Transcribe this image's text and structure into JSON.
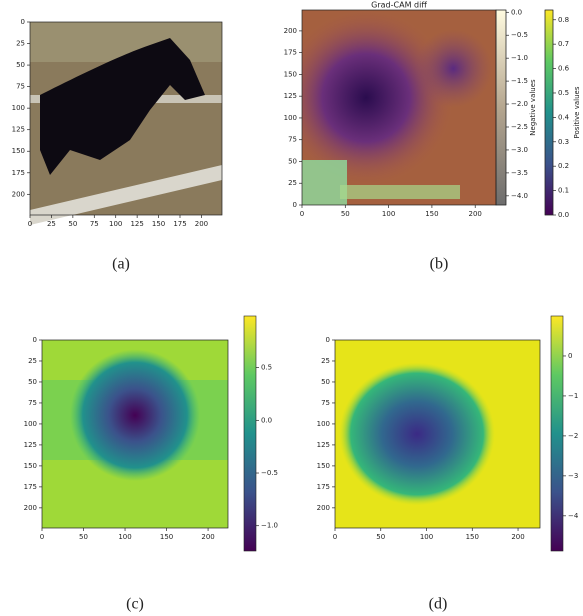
{
  "figure": {
    "panels": [
      {
        "label": "(a)",
        "xlim": [
          0,
          224
        ],
        "ylim": [
          224,
          0
        ],
        "xticks": [
          0,
          25,
          50,
          75,
          100,
          125,
          150,
          175,
          200
        ],
        "yticks": [
          0,
          25,
          50,
          75,
          100,
          125,
          150,
          175,
          200
        ]
      },
      {
        "label": "(b)",
        "title": "Grad-CAM diff",
        "xlim": [
          0,
          224
        ],
        "ylim": [
          0,
          224
        ],
        "xticks": [
          0,
          50,
          100,
          150,
          200
        ],
        "yticks": [
          0,
          25,
          50,
          75,
          100,
          125,
          150,
          175,
          200
        ],
        "colorbars": [
          {
            "label": "Negative values",
            "lim": [
              -4.2,
              0.05
            ],
            "ticks": [
              {
                "value": 0,
                "label": "0.0"
              },
              {
                "value": -0.5,
                "label": "−0.5"
              },
              {
                "value": -1,
                "label": "−1.0"
              },
              {
                "value": -1.5,
                "label": "−1.5"
              },
              {
                "value": -2,
                "label": "−2.0"
              },
              {
                "value": -2.5,
                "label": "−2.5"
              },
              {
                "value": -3,
                "label": "−3.0"
              },
              {
                "value": -3.5,
                "label": "−3.5"
              },
              {
                "value": -4,
                "label": "−4.0"
              }
            ]
          },
          {
            "label": "Positive values",
            "lim": [
              0,
              0.84
            ],
            "ticks": [
              {
                "value": 0,
                "label": "0.0"
              },
              0.1,
              0.2,
              0.3,
              0.4,
              0.5,
              0.6,
              0.7,
              0.8
            ]
          }
        ]
      },
      {
        "label": "(c)",
        "xlim": [
          0,
          224
        ],
        "ylim": [
          224,
          0
        ],
        "xticks": [
          0,
          50,
          100,
          150,
          200
        ],
        "yticks": [
          0,
          25,
          50,
          75,
          100,
          125,
          150,
          175,
          200
        ],
        "colorbars": [
          {
            "lim": [
              -1.24,
              0.99
            ],
            "ticks": [
              0.5,
              {
                "value": 0,
                "label": "0.0"
              },
              {
                "value": -0.5,
                "label": "−0.5"
              },
              {
                "value": -1,
                "label": "−1.0"
              }
            ]
          }
        ]
      },
      {
        "label": "(d)",
        "xlim": [
          0,
          224
        ],
        "ylim": [
          224,
          0
        ],
        "xticks": [
          0,
          50,
          100,
          150,
          200
        ],
        "yticks": [
          0,
          25,
          50,
          75,
          100,
          125,
          150,
          175,
          200
        ],
        "colorbars": [
          {
            "lim": [
              -4.88,
              1.0
            ],
            "ticks": [
              0,
              {
                "value": -1,
                "label": "−1"
              },
              {
                "value": -2,
                "label": "−2"
              },
              {
                "value": -3,
                "label": "−3"
              },
              {
                "value": -4,
                "label": "−4"
              }
            ]
          }
        ]
      }
    ]
  }
}
